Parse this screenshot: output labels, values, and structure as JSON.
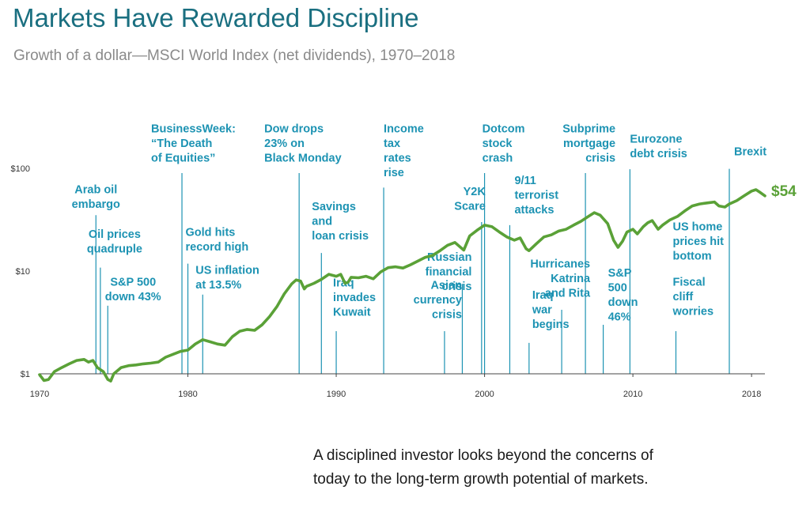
{
  "header": {
    "title": "Markets Have Rewarded Discipline",
    "subtitle": "Growth of a dollar—MSCI World Index (net dividends), 1970–2018"
  },
  "caption": "A disciplined investor looks beyond the concerns of today to the long-term growth potential of markets.",
  "colors": {
    "line": "#5aa137",
    "annotation": "#1d93b3",
    "title": "#1a6f80",
    "subtitle": "#8a8a8a"
  },
  "chart_data": {
    "type": "line",
    "title": "Markets Have Rewarded Discipline",
    "subtitle": "Growth of a dollar—MSCI World Index (net dividends), 1970–2018",
    "xlabel": "",
    "ylabel": "",
    "y_scale": "log",
    "xlim": [
      1970,
      2018.9
    ],
    "ylim": [
      1,
      100
    ],
    "x_ticks": [
      {
        "value": 1970,
        "label": "1970"
      },
      {
        "value": 1980,
        "label": "1980"
      },
      {
        "value": 1990,
        "label": "1990"
      },
      {
        "value": 2000,
        "label": "2000"
      },
      {
        "value": 2010,
        "label": "2010"
      },
      {
        "value": 2018,
        "label": "2018"
      }
    ],
    "y_ticks": [
      {
        "value": 1,
        "label": "$1"
      },
      {
        "value": 10,
        "label": "$10"
      },
      {
        "value": 100,
        "label": "$100"
      }
    ],
    "grid": false,
    "legend": "none",
    "end_label": "$54",
    "series": [
      {
        "name": "MSCI World Index (net dividends)",
        "points": [
          [
            1970.0,
            0.98
          ],
          [
            1970.3,
            0.86
          ],
          [
            1970.6,
            0.88
          ],
          [
            1971.0,
            1.05
          ],
          [
            1971.5,
            1.15
          ],
          [
            1972.0,
            1.25
          ],
          [
            1972.5,
            1.35
          ],
          [
            1973.0,
            1.38
          ],
          [
            1973.3,
            1.3
          ],
          [
            1973.6,
            1.35
          ],
          [
            1973.9,
            1.15
          ],
          [
            1974.3,
            1.05
          ],
          [
            1974.6,
            0.88
          ],
          [
            1974.8,
            0.85
          ],
          [
            1975.0,
            1.0
          ],
          [
            1975.5,
            1.15
          ],
          [
            1976.0,
            1.2
          ],
          [
            1976.5,
            1.22
          ],
          [
            1977.0,
            1.25
          ],
          [
            1977.5,
            1.27
          ],
          [
            1978.0,
            1.3
          ],
          [
            1978.5,
            1.45
          ],
          [
            1979.0,
            1.55
          ],
          [
            1979.5,
            1.65
          ],
          [
            1980.0,
            1.7
          ],
          [
            1980.5,
            1.95
          ],
          [
            1981.0,
            2.15
          ],
          [
            1981.5,
            2.05
          ],
          [
            1982.0,
            1.95
          ],
          [
            1982.5,
            1.9
          ],
          [
            1983.0,
            2.3
          ],
          [
            1983.5,
            2.6
          ],
          [
            1984.0,
            2.7
          ],
          [
            1984.5,
            2.65
          ],
          [
            1985.0,
            3.0
          ],
          [
            1985.5,
            3.6
          ],
          [
            1986.0,
            4.5
          ],
          [
            1986.5,
            6.0
          ],
          [
            1987.0,
            7.5
          ],
          [
            1987.3,
            8.2
          ],
          [
            1987.6,
            8.0
          ],
          [
            1987.85,
            6.7
          ],
          [
            1988.0,
            7.1
          ],
          [
            1988.5,
            7.6
          ],
          [
            1989.0,
            8.3
          ],
          [
            1989.5,
            9.3
          ],
          [
            1990.0,
            8.9
          ],
          [
            1990.3,
            9.3
          ],
          [
            1990.6,
            7.6
          ],
          [
            1990.8,
            7.8
          ],
          [
            1991.0,
            8.7
          ],
          [
            1991.5,
            8.6
          ],
          [
            1992.0,
            8.9
          ],
          [
            1992.5,
            8.4
          ],
          [
            1993.0,
            9.8
          ],
          [
            1993.5,
            10.8
          ],
          [
            1994.0,
            11.0
          ],
          [
            1994.5,
            10.7
          ],
          [
            1995.0,
            11.5
          ],
          [
            1995.5,
            12.5
          ],
          [
            1996.0,
            13.6
          ],
          [
            1996.5,
            14.2
          ],
          [
            1997.0,
            15.8
          ],
          [
            1997.5,
            17.8
          ],
          [
            1998.0,
            19.0
          ],
          [
            1998.6,
            16.0
          ],
          [
            1999.0,
            22.0
          ],
          [
            1999.5,
            25.0
          ],
          [
            2000.0,
            28.0
          ],
          [
            2000.5,
            27.0
          ],
          [
            2001.0,
            24.0
          ],
          [
            2001.5,
            21.5
          ],
          [
            2002.0,
            20.0
          ],
          [
            2002.4,
            21.0
          ],
          [
            2002.8,
            16.5
          ],
          [
            2003.0,
            15.8
          ],
          [
            2003.5,
            18.5
          ],
          [
            2004.0,
            21.5
          ],
          [
            2004.5,
            22.5
          ],
          [
            2005.0,
            24.5
          ],
          [
            2005.5,
            25.5
          ],
          [
            2006.0,
            28.0
          ],
          [
            2006.5,
            30.5
          ],
          [
            2007.0,
            34.0
          ],
          [
            2007.4,
            37.0
          ],
          [
            2007.8,
            35.0
          ],
          [
            2008.3,
            29.0
          ],
          [
            2008.7,
            20.0
          ],
          [
            2009.0,
            17.0
          ],
          [
            2009.3,
            19.5
          ],
          [
            2009.6,
            24.0
          ],
          [
            2010.0,
            25.5
          ],
          [
            2010.3,
            23.0
          ],
          [
            2010.7,
            27.0
          ],
          [
            2011.0,
            29.5
          ],
          [
            2011.3,
            31.0
          ],
          [
            2011.7,
            25.5
          ],
          [
            2012.0,
            28.0
          ],
          [
            2012.5,
            31.5
          ],
          [
            2013.0,
            34.0
          ],
          [
            2013.5,
            38.5
          ],
          [
            2014.0,
            43.0
          ],
          [
            2014.5,
            45.0
          ],
          [
            2015.0,
            46.0
          ],
          [
            2015.5,
            47.0
          ],
          [
            2015.8,
            43.0
          ],
          [
            2016.2,
            42.0
          ],
          [
            2016.5,
            45.0
          ],
          [
            2017.0,
            48.5
          ],
          [
            2017.5,
            54.0
          ],
          [
            2018.0,
            60.0
          ],
          [
            2018.3,
            62.0
          ],
          [
            2018.6,
            58.0
          ],
          [
            2018.9,
            54.0
          ]
        ]
      }
    ],
    "annotations": [
      {
        "x": 1973.8,
        "y_top": 35,
        "lines": [
          "Arab oil",
          "embargo"
        ],
        "anchor": "middle",
        "dx": 0,
        "y_label": 57
      },
      {
        "x": 1974.1,
        "y_top": 10.8,
        "lines": [
          "Oil prices",
          "quadruple"
        ],
        "anchor": "middle",
        "dx": 18,
        "y_label": 21
      },
      {
        "x": 1974.6,
        "y_top": 4.6,
        "lines": [
          "S&P 500",
          "down 43%"
        ],
        "anchor": "middle",
        "dx": 32,
        "y_label": 7.2
      },
      {
        "x": 1979.6,
        "y_top": 90,
        "lines": [
          "BusinessWeek:",
          "“The Death",
          "of Equities”"
        ],
        "anchor": "start",
        "dx": -39,
        "y_label": 224
      },
      {
        "x": 1980.0,
        "y_top": 11.8,
        "lines": [
          "Gold hits",
          "record high"
        ],
        "anchor": "start",
        "dx": -3,
        "y_label": 22
      },
      {
        "x": 1981.0,
        "y_top": 5.9,
        "lines": [
          "US inflation",
          "at 13.5%"
        ],
        "anchor": "start",
        "dx": -9,
        "y_label": 9.4
      },
      {
        "x": 1987.5,
        "y_top": 90,
        "lines": [
          "Dow drops",
          "23% on",
          "Black Monday"
        ],
        "anchor": "start",
        "dx": -44,
        "y_label": 224
      },
      {
        "x": 1989.0,
        "y_top": 15,
        "lines": [
          "Savings",
          "and",
          "loan crisis"
        ],
        "anchor": "start",
        "dx": -12,
        "y_label": 39
      },
      {
        "x": 1990.0,
        "y_top": 2.6,
        "lines": [
          "Iraq",
          "invades",
          "Kuwait"
        ],
        "anchor": "start",
        "dx": -4,
        "y_label": 7.1
      },
      {
        "x": 1993.2,
        "y_top": 65,
        "lines": [
          "Income",
          "tax",
          "rates",
          "rise"
        ],
        "anchor": "start",
        "dx": 0,
        "y_label": 224
      },
      {
        "x": 1997.3,
        "y_top": 2.6,
        "lines": [
          "Asian",
          "currency",
          "crisis"
        ],
        "anchor": "end",
        "dx": 22,
        "y_label": 6.7
      },
      {
        "x": 1998.5,
        "y_top": 7.5,
        "lines": [
          "Russian",
          "financial",
          "crisis"
        ],
        "anchor": "end",
        "dx": 12,
        "y_label": 12.6
      },
      {
        "x": 1999.8,
        "y_top": 30,
        "lines": [
          "Y2K",
          "Scare"
        ],
        "anchor": "end",
        "dx": 5,
        "y_label": 55
      },
      {
        "x": 2000.0,
        "y_top": 90,
        "lines": [
          "Dotcom",
          "stock",
          "crash"
        ],
        "anchor": "start",
        "dx": -3,
        "y_label": 224
      },
      {
        "x": 2001.7,
        "y_top": 28,
        "lines": [
          "9/11",
          "terrorist",
          "attacks"
        ],
        "anchor": "start",
        "dx": 6,
        "y_label": 70
      },
      {
        "x": 2003.0,
        "y_top": 2.0,
        "lines": [
          "Iraq",
          "war",
          "begins"
        ],
        "anchor": "start",
        "dx": 4,
        "y_label": 5.4
      },
      {
        "x": 2005.2,
        "y_top": 4.2,
        "lines": [
          "Hurricanes",
          "Katrina",
          "and Rita"
        ],
        "anchor": "end",
        "dx": 36,
        "y_label": 10.8
      },
      {
        "x": 2006.8,
        "y_top": 90,
        "lines": [
          "Subprime",
          "mortgage",
          "crisis"
        ],
        "anchor": "end",
        "dx": 38,
        "y_label": 224
      },
      {
        "x": 2008.0,
        "y_top": 3.0,
        "lines": [
          "S&P",
          "500",
          "down",
          "46%"
        ],
        "anchor": "start",
        "dx": 6,
        "y_label": 8.8
      },
      {
        "x": 2009.8,
        "y_top": 98,
        "lines": [
          "Eurozone",
          "debt crisis"
        ],
        "anchor": "start",
        "dx": 0,
        "y_label": 178
      },
      {
        "x": 2012.9,
        "y_top": 2.6,
        "lines": [
          "Fiscal",
          "cliff",
          "worries"
        ],
        "anchor": "start",
        "dx": -4,
        "y_label": 7.2
      },
      {
        "x": 2012.9,
        "y_top": null,
        "lines": [
          "US home",
          "prices hit",
          "bottom"
        ],
        "anchor": "start",
        "dx": -4,
        "y_label": 25
      },
      {
        "x": 2016.5,
        "y_top": 99,
        "lines": [
          "Brexit"
        ],
        "anchor": "start",
        "dx": 6,
        "y_label": 134
      }
    ]
  }
}
